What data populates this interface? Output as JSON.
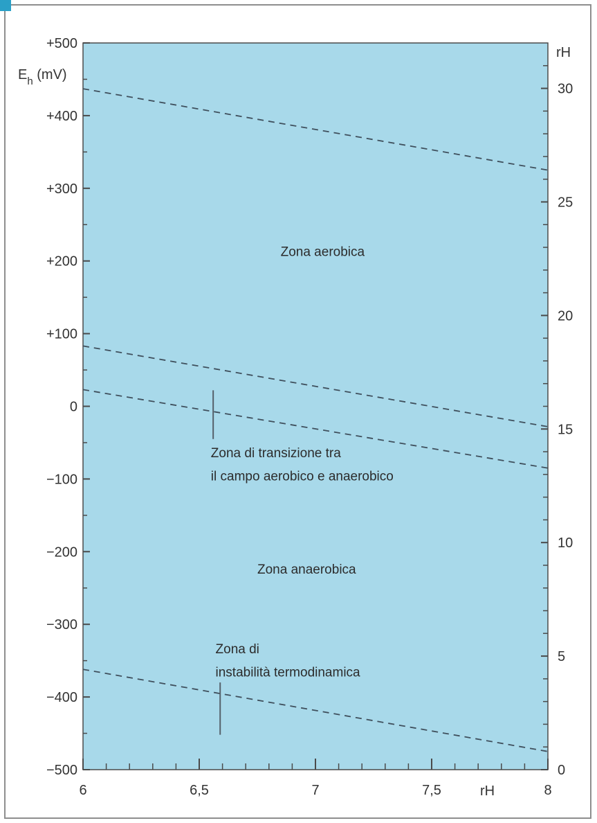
{
  "chart_data": {
    "type": "line",
    "xlabel": "rH",
    "ylabel": "E",
    "ylabel_sub": "h",
    "ylabel_unit": " (mV)",
    "y2label": "rH",
    "xlim": [
      6,
      8
    ],
    "ylim": [
      -500,
      500
    ],
    "y2lim": [
      0,
      32
    ],
    "x_ticks": [
      6,
      6.5,
      7,
      7.5,
      8
    ],
    "x_tick_labels": [
      "6",
      "6,5",
      "7",
      "7,5",
      "8"
    ],
    "y_ticks": [
      500,
      400,
      300,
      200,
      100,
      0,
      -100,
      -200,
      -300,
      -400,
      -500
    ],
    "y_tick_labels": [
      "+500",
      "+400",
      "+300",
      "+200",
      "+100",
      "0",
      "−100",
      "−200",
      "−300",
      "−400",
      "−500"
    ],
    "y2_ticks": [
      30,
      25,
      20,
      15,
      10,
      5,
      0
    ],
    "y2_tick_labels": [
      "30",
      "25",
      "20",
      "15",
      "10",
      "5",
      "0"
    ],
    "grid": false,
    "background_color": "#a8d9ea",
    "line_color": "#3f4f5c",
    "series": [
      {
        "style": "dashed",
        "x": [
          6,
          8
        ],
        "y": [
          437,
          325
        ]
      },
      {
        "style": "dashed",
        "x": [
          6,
          8
        ],
        "y": [
          83,
          -28
        ]
      },
      {
        "style": "dashed",
        "x": [
          6,
          8
        ],
        "y": [
          23,
          -85
        ]
      },
      {
        "style": "dashed",
        "x": [
          6,
          8
        ],
        "y": [
          -362,
          -475
        ]
      }
    ],
    "annotations": [
      {
        "text": "Zona aerobica",
        "x": 6.85,
        "y": 207
      },
      {
        "text": "Zona di transizione tra",
        "x": 6.55,
        "y": -70
      },
      {
        "text": "il campo aerobico e anaerobico",
        "x": 6.55,
        "y": -102
      },
      {
        "text": "Zona anaerobica",
        "x": 6.75,
        "y": -230
      },
      {
        "text": "Zona di",
        "x": 6.57,
        "y": -340
      },
      {
        "text": "instabilità termodinamica",
        "x": 6.57,
        "y": -372
      }
    ],
    "markers": [
      {
        "x": 6.56,
        "y1": 22,
        "y2": -45
      },
      {
        "x": 6.59,
        "y1": -380,
        "y2": -452
      }
    ]
  }
}
